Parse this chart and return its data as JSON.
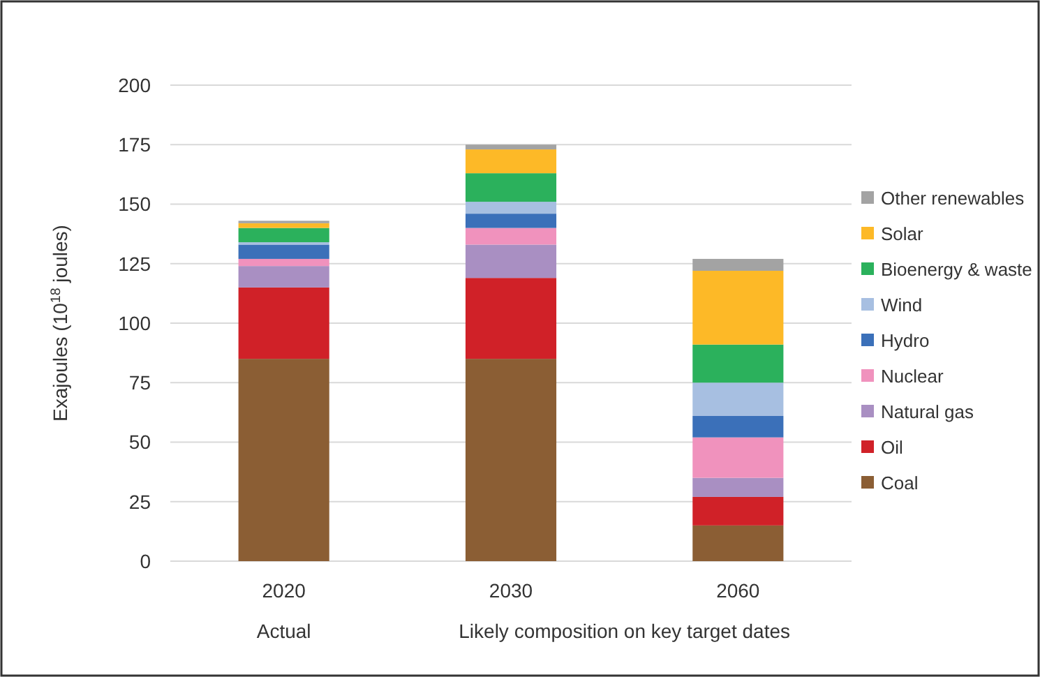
{
  "chart_data": {
    "type": "bar",
    "stacked": true,
    "ylabel": "Exajoules (10$^{18}$ joules)",
    "categories": [
      "2020",
      "2030",
      "2060"
    ],
    "series": [
      {
        "name": "Coal",
        "color": "#8b5e34",
        "values": [
          85,
          85,
          15
        ]
      },
      {
        "name": "Oil",
        "color": "#d02128",
        "values": [
          30,
          34,
          12
        ]
      },
      {
        "name": "Natural gas",
        "color": "#a98fc2",
        "values": [
          9,
          14,
          8
        ]
      },
      {
        "name": "Nuclear",
        "color": "#f092bd",
        "values": [
          3,
          7,
          17
        ]
      },
      {
        "name": "Hydro",
        "color": "#3b70b9",
        "values": [
          6,
          6,
          9
        ]
      },
      {
        "name": "Wind",
        "color": "#a7bfe1",
        "values": [
          1,
          5,
          14
        ]
      },
      {
        "name": "Bioenergy & waste",
        "color": "#2bb15c",
        "values": [
          6,
          12,
          16
        ]
      },
      {
        "name": "Solar",
        "color": "#fdb927",
        "values": [
          2,
          10,
          31
        ]
      },
      {
        "name": "Other renewables",
        "color": "#a3a3a3",
        "values": [
          1,
          2,
          5
        ]
      }
    ],
    "ylim": [
      0,
      200
    ],
    "yticks": [
      0,
      25,
      50,
      75,
      100,
      125,
      150,
      175,
      200
    ],
    "grid": "y",
    "legend": "right",
    "annotations": [
      "Actual",
      "Likely composition on key target dates"
    ]
  }
}
